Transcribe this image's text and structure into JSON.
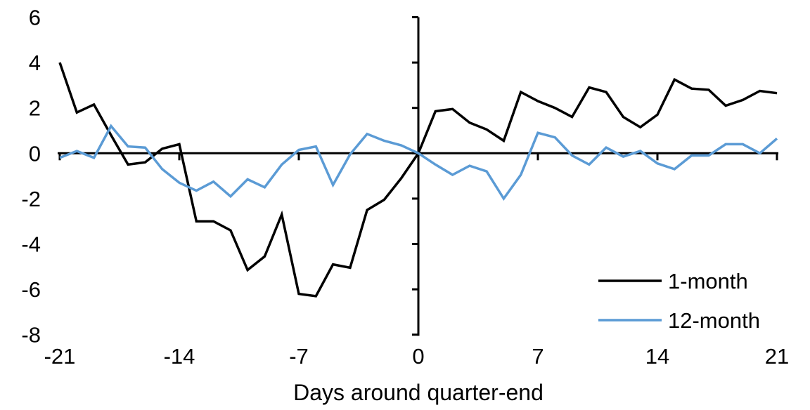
{
  "chart_data": {
    "type": "line",
    "title": "",
    "xlabel": "Days around quarter-end",
    "ylabel": "",
    "x": [
      -21,
      -20,
      -19,
      -18,
      -17,
      -16,
      -15,
      -14,
      -13,
      -12,
      -11,
      -10,
      -9,
      -8,
      -7,
      -6,
      -5,
      -4,
      -3,
      -2,
      -1,
      0,
      1,
      2,
      3,
      4,
      5,
      6,
      7,
      8,
      9,
      10,
      11,
      12,
      13,
      14,
      15,
      16,
      17,
      18,
      19,
      20,
      21
    ],
    "series": [
      {
        "name": "1-month",
        "color": "#000000",
        "values": [
          4.0,
          1.8,
          2.15,
          0.8,
          -0.5,
          -0.4,
          0.2,
          0.4,
          -3.0,
          -3.0,
          -3.4,
          -5.15,
          -4.55,
          -2.7,
          -6.2,
          -6.3,
          -4.9,
          -5.05,
          -2.5,
          -2.05,
          -1.1,
          0.0,
          1.85,
          1.95,
          1.35,
          1.05,
          0.55,
          2.7,
          2.3,
          2.0,
          1.6,
          2.9,
          2.7,
          1.6,
          1.15,
          1.7,
          3.25,
          2.85,
          2.8,
          2.1,
          2.35,
          2.75,
          2.65
        ]
      },
      {
        "name": "12-month",
        "color": "#5B9BD5",
        "values": [
          -0.2,
          0.1,
          -0.2,
          1.2,
          0.3,
          0.25,
          -0.7,
          -1.3,
          -1.65,
          -1.25,
          -1.9,
          -1.15,
          -1.5,
          -0.5,
          0.15,
          0.3,
          -1.4,
          -0.05,
          0.85,
          0.55,
          0.35,
          0.0,
          -0.5,
          -0.95,
          -0.55,
          -0.8,
          -2.0,
          -0.95,
          0.9,
          0.7,
          -0.1,
          -0.5,
          0.25,
          -0.15,
          0.1,
          -0.45,
          -0.7,
          -0.1,
          -0.1,
          0.4,
          0.4,
          0.0,
          0.65
        ]
      }
    ],
    "xlim": [
      -21,
      21
    ],
    "ylim": [
      -8,
      6
    ],
    "x_ticks": [
      -21,
      -14,
      -7,
      0,
      7,
      14,
      21
    ],
    "y_ticks": [
      6,
      4,
      2,
      0,
      -2,
      -4,
      -6,
      -8
    ],
    "grid": false,
    "legend_position": "right-lower",
    "background": "#ffffff",
    "axis_color": "#000000"
  }
}
